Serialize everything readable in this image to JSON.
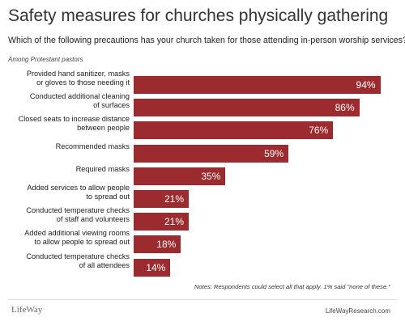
{
  "chart_data": {
    "type": "bar",
    "orientation": "horizontal",
    "title": "Safety measures for churches physically gathering",
    "subtitle": "Which of the following precautions has your church taken for those attending in-person worship services?",
    "population": "Among Protestant pastors",
    "categories": [
      "Provided hand sanitizer, masks\nor gloves to those needing it",
      "Conducted additional cleaning\nof surfaces",
      "Closed seats to increase distance\nbetween people",
      "Recommended masks",
      "Required masks",
      "Added services to allow people\nto spread out",
      "Conducted temperature checks\nof staff and volunteers",
      "Added additional viewing rooms\nto allow people to spread out",
      "Conducted temperature checks\nof all attendees"
    ],
    "values": [
      94,
      86,
      76,
      59,
      35,
      21,
      21,
      18,
      14
    ],
    "value_labels": [
      "94%",
      "86%",
      "76%",
      "59%",
      "35%",
      "21%",
      "21%",
      "18%",
      "14%"
    ],
    "color": "#9b2b2e",
    "notes": "Notes: Respondents could select all that apply. 1% said \"none of these.\"",
    "logo": "LifeWay",
    "source": "LifeWayResearch.com"
  }
}
